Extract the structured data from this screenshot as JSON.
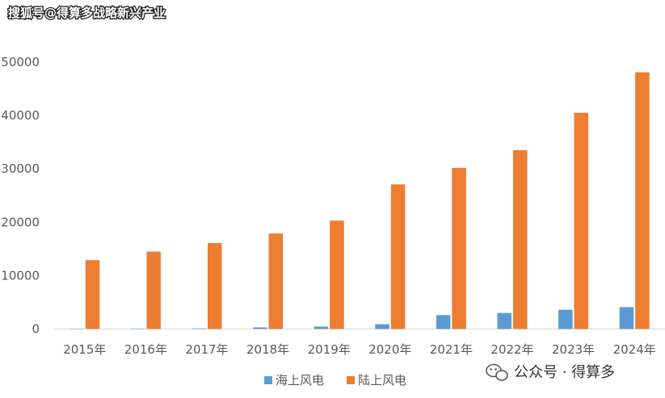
{
  "watermark_top": "搜狐号@得算多战略新兴产业",
  "watermark_bottom": "公众号 · 得算多",
  "chart_data": {
    "type": "bar",
    "title": "",
    "xlabel": "",
    "ylabel": "",
    "categories": [
      "2015年",
      "2016年",
      "2017年",
      "2018年",
      "2019年",
      "2020年",
      "2021年",
      "2022年",
      "2023年",
      "2024年"
    ],
    "series": [
      {
        "name": "海上风电",
        "color": "#5b9bd5",
        "values": [
          60,
          80,
          100,
          300,
          450,
          900,
          2600,
          3000,
          3600,
          4100
        ]
      },
      {
        "name": "陆上风电",
        "color": "#ed7d31",
        "values": [
          12900,
          14500,
          16100,
          17900,
          20300,
          27100,
          30200,
          33500,
          40500,
          48100
        ]
      }
    ],
    "yticks": [
      0,
      10000,
      20000,
      30000,
      40000,
      50000
    ],
    "ylim": [
      0,
      50000
    ],
    "grid": false,
    "legend": "bottom"
  }
}
